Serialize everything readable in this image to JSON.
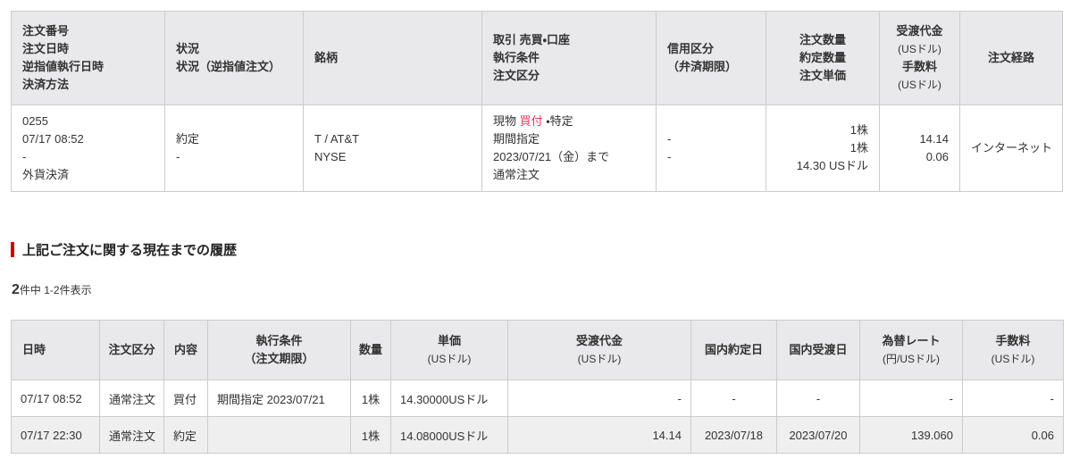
{
  "colors": {
    "header_bg": "#e9e9ec",
    "stripe_bg": "#efefef",
    "border": "#cccccc",
    "text": "#333333",
    "buy_red": "#e23a5f",
    "accent_red": "#cc0000"
  },
  "order_table": {
    "columns": [
      {
        "key": "order-number",
        "lines": [
          "注文番号",
          "注文日時",
          "逆指値執行日時",
          "決済方法"
        ]
      },
      {
        "key": "status",
        "lines": [
          "状況",
          "状況（逆指値注文）"
        ]
      },
      {
        "key": "symbol",
        "lines": [
          "銘柄"
        ]
      },
      {
        "key": "trade",
        "lines": [
          "取引 売買・口座",
          "執行条件",
          "注文区分"
        ]
      },
      {
        "key": "margin-class",
        "lines": [
          "信用区分",
          "（弁済期限）"
        ]
      },
      {
        "key": "quantity",
        "lines": [
          "注文数量",
          "約定数量",
          "注文単価"
        ]
      },
      {
        "key": "amount",
        "lines": [
          "受渡代金",
          "(USドル)",
          "手数料",
          "(USドル)"
        ]
      },
      {
        "key": "route",
        "lines": [
          "注文経路"
        ]
      }
    ],
    "row_cells": [
      {
        "key": "order-number",
        "lines": [
          "0255",
          "07/17 08:52",
          "-",
          "外貨決済"
        ]
      },
      {
        "key": "status",
        "lines": [
          "約定",
          "-"
        ]
      },
      {
        "key": "symbol",
        "lines": [
          "T / AT&T",
          "NYSE"
        ]
      },
      {
        "key": "trade",
        "lines": [
          [
            {
              "t": "現物 "
            },
            {
              "t": "買付",
              "red": true
            },
            {
              "t": " ・特定"
            }
          ],
          "期間指定",
          "2023/07/21（金）まで",
          "通常注文"
        ]
      },
      {
        "key": "margin-class",
        "lines": [
          "-",
          "-"
        ]
      },
      {
        "key": "quantity",
        "lines": [
          "1株",
          "1株",
          "14.30 USドル"
        ]
      },
      {
        "key": "amount",
        "lines": [
          "14.14",
          "0.06"
        ]
      },
      {
        "key": "route",
        "lines": [
          "インターネット"
        ]
      }
    ]
  },
  "history": {
    "title": "上記ご注文に関する現在までの履歴",
    "count": {
      "total": "2",
      "rest": "件中 1-2件表示"
    },
    "table": {
      "columns": [
        {
          "key": "date",
          "lines": [
            "日時"
          ]
        },
        {
          "key": "order-type",
          "lines": [
            "注文区分"
          ]
        },
        {
          "key": "content",
          "lines": [
            "内容"
          ]
        },
        {
          "key": "exec-condition",
          "lines": [
            "執行条件",
            "（注文期限）"
          ]
        },
        {
          "key": "quantity",
          "lines": [
            "数量"
          ]
        },
        {
          "key": "unit-price",
          "lines": [
            "単価",
            "(USドル)"
          ]
        },
        {
          "key": "settlement-amount",
          "lines": [
            "受渡代金",
            "(USドル)"
          ]
        },
        {
          "key": "domestic-contract-date",
          "lines": [
            "国内約定日"
          ]
        },
        {
          "key": "domestic-settlement-date",
          "lines": [
            "国内受渡日"
          ]
        },
        {
          "key": "exchange-rate",
          "lines": [
            "為替レート",
            "(円/USドル)"
          ]
        },
        {
          "key": "commission",
          "lines": [
            "手数料",
            "(USドル)"
          ]
        }
      ],
      "rows": [
        [
          "07/17 08:52",
          "通常注文",
          "買付",
          "期間指定 2023/07/21",
          "1株",
          "14.30000USドル",
          "-",
          "-",
          "-",
          "-",
          "-"
        ],
        [
          "07/17 22:30",
          "通常注文",
          "約定",
          "",
          "1株",
          "14.08000USドル",
          "14.14",
          "2023/07/18",
          "2023/07/20",
          "139.060",
          "0.06"
        ]
      ]
    }
  }
}
